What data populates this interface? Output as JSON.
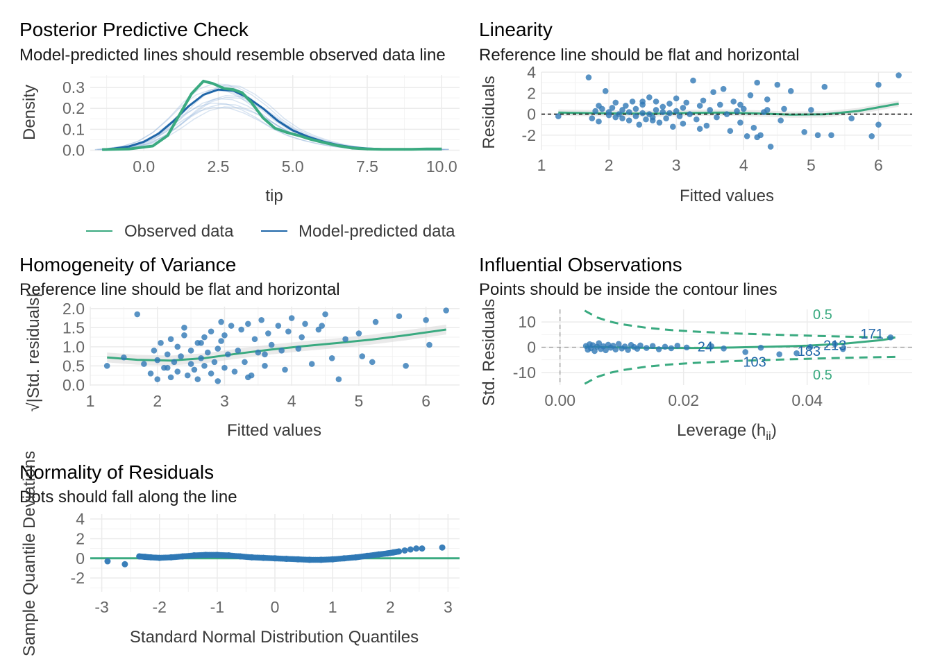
{
  "colors": {
    "observed": "#3aaa80",
    "predicted": "#1f66a8",
    "points": "#2f78b5",
    "grid": "#ebebeb",
    "band": "#d9d9d9",
    "text_muted": "#666666"
  },
  "chart_data": [
    {
      "type": "line",
      "title": "Posterior Predictive Check",
      "subtitle": "Model-predicted lines should resemble observed data line",
      "xlabel": "tip",
      "ylabel": "Density",
      "xlim": [
        -1.8,
        10.6
      ],
      "ylim": [
        -0.005,
        0.36
      ],
      "xticks": [
        0.0,
        2.5,
        5.0,
        7.5,
        10.0
      ],
      "xtick_labels": [
        "0.0",
        "2.5",
        "5.0",
        "7.5",
        "10.0"
      ],
      "yticks": [
        0.0,
        0.1,
        0.2,
        0.3
      ],
      "ytick_labels": [
        "0.0",
        "0.1",
        "0.2",
        "0.3"
      ],
      "grid": true,
      "legend_position": "bottom",
      "series": [
        {
          "name": "Observed data",
          "x": [
            -1.4,
            -0.5,
            0.3,
            0.8,
            1.2,
            1.6,
            2.0,
            2.3,
            2.7,
            3.0,
            3.3,
            3.6,
            4.0,
            4.4,
            4.8,
            5.2,
            5.6,
            6.0,
            6.5,
            7.0,
            7.5,
            8.0,
            8.5,
            9.0,
            9.5,
            10.0
          ],
          "y": [
            0.003,
            0.006,
            0.02,
            0.07,
            0.17,
            0.27,
            0.33,
            0.32,
            0.295,
            0.29,
            0.275,
            0.23,
            0.155,
            0.105,
            0.085,
            0.07,
            0.052,
            0.038,
            0.022,
            0.01,
            0.006,
            0.004,
            0.004,
            0.004,
            0.006,
            0.006
          ]
        },
        {
          "name": "Model-predicted data",
          "x": [
            -1.4,
            -1.0,
            -0.5,
            0.0,
            0.5,
            1.0,
            1.5,
            2.0,
            2.5,
            3.0,
            3.5,
            4.0,
            4.5,
            5.0,
            5.5,
            6.0,
            6.5,
            7.0,
            7.5,
            8.0,
            8.5,
            9.0,
            9.5,
            10.0
          ],
          "y": [
            0.003,
            0.008,
            0.018,
            0.04,
            0.08,
            0.14,
            0.21,
            0.265,
            0.29,
            0.285,
            0.25,
            0.2,
            0.14,
            0.095,
            0.065,
            0.042,
            0.025,
            0.014,
            0.008,
            0.005,
            0.004,
            0.004,
            0.004,
            0.004
          ]
        }
      ]
    },
    {
      "type": "scatter",
      "title": "Linearity",
      "subtitle": "Reference line should be flat and horizontal",
      "xlabel": "Fitted values",
      "ylabel": "Residuals",
      "xlim": [
        1.0,
        6.5
      ],
      "ylim": [
        -3.4,
        4.0
      ],
      "xticks": [
        1,
        2,
        3,
        4,
        5,
        6
      ],
      "xtick_labels": [
        "1",
        "2",
        "3",
        "4",
        "5",
        "6"
      ],
      "yticks": [
        -2,
        0,
        2,
        4
      ],
      "ytick_labels": [
        "-2",
        "0",
        "2",
        "4"
      ],
      "grid": true,
      "reference_line": 0,
      "smooth": {
        "x": [
          1.25,
          1.7,
          2.2,
          2.7,
          3.2,
          3.7,
          4.2,
          4.7,
          5.2,
          5.7,
          6.3
        ],
        "y": [
          0.15,
          0.1,
          0.06,
          0.05,
          0.12,
          0.15,
          0.07,
          -0.05,
          -0.02,
          0.3,
          1.0
        ]
      },
      "points": {
        "x": [
          1.25,
          1.7,
          1.75,
          1.8,
          1.85,
          1.9,
          1.95,
          2.0,
          2.0,
          2.05,
          2.1,
          2.1,
          2.15,
          2.2,
          2.2,
          2.25,
          2.3,
          2.3,
          2.35,
          2.4,
          2.4,
          2.45,
          2.5,
          2.5,
          2.55,
          2.6,
          2.6,
          2.65,
          2.7,
          2.7,
          2.75,
          2.8,
          2.8,
          2.85,
          2.9,
          2.9,
          2.95,
          3.0,
          3.0,
          3.05,
          3.1,
          3.1,
          3.15,
          3.2,
          3.25,
          3.3,
          3.35,
          3.4,
          3.45,
          3.5,
          3.55,
          3.6,
          3.65,
          3.7,
          3.75,
          3.8,
          3.85,
          3.9,
          3.95,
          4.0,
          4.05,
          4.1,
          4.15,
          4.2,
          4.25,
          4.3,
          4.35,
          4.4,
          4.5,
          4.55,
          4.6,
          4.7,
          4.9,
          5.0,
          5.1,
          5.2,
          5.3,
          5.6,
          5.9,
          6.0,
          6.0,
          6.3,
          1.85,
          2.5,
          2.65,
          3.35,
          3.95,
          4.35,
          4.2
        ],
        "y": [
          -0.2,
          3.5,
          -0.4,
          0.3,
          -0.7,
          0.5,
          2.2,
          -0.1,
          0.2,
          0.6,
          -0.3,
          1.1,
          0.0,
          -0.4,
          0.4,
          0.8,
          -0.6,
          0.2,
          1.2,
          -0.2,
          0.5,
          -1.0,
          0.1,
          0.9,
          -0.5,
          1.6,
          0.0,
          -0.3,
          0.4,
          1.2,
          -0.8,
          0.2,
          0.7,
          -0.4,
          1.0,
          0.1,
          -1.2,
          0.3,
          1.5,
          -0.2,
          0.6,
          -0.9,
          1.1,
          0.0,
          3.2,
          -0.5,
          0.8,
          1.3,
          -1.1,
          0.4,
          2.1,
          -0.3,
          0.9,
          2.4,
          0.0,
          -1.6,
          1.2,
          0.3,
          -0.8,
          0.5,
          -2.1,
          1.8,
          -1.3,
          3.0,
          -2.0,
          0.2,
          1.4,
          -3.1,
          2.8,
          -0.6,
          0.5,
          2.2,
          -1.7,
          0.4,
          -2.0,
          2.6,
          -2.0,
          -0.4,
          -2.1,
          2.8,
          -1.0,
          3.7,
          0.8,
          1.2,
          -0.6,
          -1.4,
          0.9,
          0.4,
          -2.2
        ]
      }
    },
    {
      "type": "scatter",
      "title": "Homogeneity of Variance",
      "subtitle": "Reference line should be flat and horizontal",
      "xlabel": "Fitted values",
      "ylabel": "√|Std. residuals|",
      "xlim": [
        1.0,
        6.5
      ],
      "ylim": [
        -0.02,
        2.05
      ],
      "xticks": [
        1,
        2,
        3,
        4,
        5,
        6
      ],
      "xtick_labels": [
        "1",
        "2",
        "3",
        "4",
        "5",
        "6"
      ],
      "yticks": [
        0.0,
        0.5,
        1.0,
        1.5,
        2.0
      ],
      "ytick_labels": [
        "0.0",
        "0.5",
        "1.0",
        "1.5",
        "2.0"
      ],
      "grid": true,
      "smooth": {
        "x": [
          1.25,
          1.7,
          2.2,
          2.7,
          3.2,
          3.7,
          4.2,
          4.7,
          5.2,
          5.7,
          6.3
        ],
        "y": [
          0.72,
          0.66,
          0.64,
          0.7,
          0.82,
          0.93,
          1.02,
          1.1,
          1.19,
          1.3,
          1.45
        ]
      },
      "points": {
        "x": [
          1.25,
          1.5,
          1.7,
          1.8,
          1.9,
          1.95,
          2.0,
          2.0,
          2.05,
          2.1,
          2.15,
          2.2,
          2.2,
          2.25,
          2.3,
          2.3,
          2.35,
          2.4,
          2.45,
          2.5,
          2.5,
          2.55,
          2.6,
          2.6,
          2.65,
          2.7,
          2.7,
          2.75,
          2.8,
          2.8,
          2.85,
          2.9,
          2.9,
          2.95,
          3.0,
          3.0,
          3.05,
          3.1,
          3.15,
          3.2,
          3.25,
          3.3,
          3.35,
          3.4,
          3.45,
          3.5,
          3.55,
          3.6,
          3.65,
          3.7,
          3.8,
          3.9,
          3.95,
          4.0,
          4.1,
          4.15,
          4.2,
          4.3,
          4.4,
          4.5,
          4.6,
          4.7,
          4.8,
          5.0,
          5.05,
          5.2,
          5.25,
          5.6,
          5.7,
          6.0,
          6.05,
          6.3,
          2.15,
          2.65,
          3.35,
          3.85,
          4.45,
          2.4,
          2.95,
          3.6
        ],
        "y": [
          0.5,
          0.72,
          1.85,
          0.55,
          0.3,
          0.9,
          0.15,
          0.65,
          1.1,
          0.45,
          0.8,
          0.2,
          1.2,
          0.6,
          0.35,
          1.0,
          0.75,
          1.3,
          0.25,
          0.55,
          0.9,
          0.4,
          1.1,
          0.15,
          0.7,
          0.5,
          1.25,
          0.85,
          0.3,
          1.4,
          0.6,
          0.95,
          0.1,
          1.15,
          0.45,
          1.3,
          0.8,
          1.55,
          0.35,
          0.9,
          1.45,
          0.6,
          1.6,
          0.25,
          1.2,
          0.85,
          1.7,
          0.5,
          1.35,
          1.05,
          1.55,
          0.4,
          1.4,
          1.75,
          0.95,
          1.25,
          1.6,
          0.55,
          1.45,
          1.85,
          0.7,
          0.15,
          1.2,
          1.35,
          0.75,
          0.6,
          1.65,
          1.8,
          0.5,
          1.7,
          1.05,
          1.95,
          0.45,
          1.1,
          0.2,
          0.9,
          1.55,
          1.5,
          1.65,
          0.8
        ]
      }
    },
    {
      "type": "scatter",
      "title": "Influential Observations",
      "subtitle": "Points should be inside the contour lines",
      "xlabel": "Leverage (h",
      "xlabel_sub": "ii",
      "xlabel_end": ")",
      "ylabel": "Std. Residuals",
      "xlim": [
        -0.003,
        0.057
      ],
      "ylim": [
        -15,
        15
      ],
      "xticks": [
        0.0,
        0.02,
        0.04
      ],
      "xtick_labels": [
        "0.00",
        "0.02",
        "0.04"
      ],
      "yticks": [
        -10,
        0,
        10
      ],
      "ytick_labels": [
        "-10",
        "0",
        "10"
      ],
      "grid": true,
      "contour_label": "0.5",
      "contour": {
        "x": [
          0.004,
          0.006,
          0.008,
          0.01,
          0.014,
          0.018,
          0.022,
          0.028,
          0.034,
          0.04,
          0.046,
          0.052,
          0.055
        ],
        "y": [
          14.5,
          11.8,
          10.2,
          9.1,
          7.7,
          6.8,
          6.2,
          5.5,
          5.0,
          4.6,
          4.2,
          3.9,
          3.8
        ]
      },
      "smooth": {
        "x": [
          0.004,
          0.01,
          0.016,
          0.022,
          0.028,
          0.034,
          0.04,
          0.046,
          0.052,
          0.054
        ],
        "y": [
          0.2,
          -0.1,
          -0.3,
          -0.3,
          -0.1,
          0.2,
          0.6,
          1.4,
          2.8,
          3.6
        ]
      },
      "points": {
        "x": [
          0.0042,
          0.0045,
          0.0048,
          0.005,
          0.0053,
          0.0056,
          0.006,
          0.0063,
          0.0066,
          0.007,
          0.0074,
          0.0078,
          0.0082,
          0.0086,
          0.009,
          0.0095,
          0.01,
          0.0105,
          0.011,
          0.0115,
          0.012,
          0.0125,
          0.013,
          0.014,
          0.015,
          0.016,
          0.017,
          0.018,
          0.019,
          0.0205,
          0.0245,
          0.0265,
          0.03,
          0.0325,
          0.0355,
          0.0383,
          0.0405,
          0.0445,
          0.0458,
          0.0535
        ],
        "y": [
          0.5,
          -1.0,
          1.2,
          -0.4,
          0.8,
          -1.5,
          0.2,
          1.6,
          -0.7,
          0.4,
          -1.2,
          1.0,
          -0.2,
          0.6,
          -0.9,
          1.3,
          -0.5,
          0.3,
          -1.1,
          0.9,
          0.1,
          -0.6,
          0.7,
          -0.3,
          0.5,
          -0.8,
          0.2,
          -0.4,
          0.6,
          -0.1,
          0.4,
          -0.5,
          -1.9,
          -0.2,
          -2.8,
          -2.4,
          0.1,
          1.2,
          -0.7,
          3.9
        ]
      },
      "labels": [
        {
          "text": "24",
          "x": 0.0235,
          "y": 0.3
        },
        {
          "text": "183",
          "x": 0.0403,
          "y": -1.5
        },
        {
          "text": "213",
          "x": 0.0445,
          "y": 0.8
        },
        {
          "text": "103",
          "x": 0.0315,
          "y": -5.8
        },
        {
          "text": "171",
          "x": 0.0505,
          "y": 5.4
        }
      ]
    },
    {
      "type": "scatter",
      "title": "Normality of Residuals",
      "subtitle": "Dots should fall along the line",
      "xlabel": "Standard Normal Distribution Quantiles",
      "ylabel": "Sample Quantile Deviations",
      "xlim": [
        -3.2,
        3.2
      ],
      "ylim": [
        -3.4,
        4.5
      ],
      "xticks": [
        -3,
        -2,
        -1,
        0,
        1,
        2,
        3
      ],
      "xtick_labels": [
        "-3",
        "-2",
        "-1",
        "0",
        "1",
        "2",
        "3"
      ],
      "yticks": [
        -2,
        0,
        2,
        4
      ],
      "ytick_labels": [
        "-2",
        "0",
        "2",
        "4"
      ],
      "grid": true,
      "reference_line": 0,
      "points": {
        "x": [
          -2.9,
          -2.6,
          -2.35,
          -2.25,
          -2.15,
          -2.0,
          -1.8,
          -1.6,
          -1.4,
          -1.2,
          -1.0,
          -0.8,
          -0.6,
          -0.4,
          -0.2,
          0.0,
          0.2,
          0.4,
          0.6,
          0.8,
          1.0,
          1.2,
          1.4,
          1.6,
          1.8,
          1.95,
          2.05,
          2.15,
          2.25,
          2.35,
          2.45,
          2.55,
          2.9
        ],
        "y": [
          -0.3,
          -0.6,
          0.2,
          0.15,
          0.1,
          0.05,
          0.1,
          0.2,
          0.3,
          0.35,
          0.35,
          0.3,
          0.2,
          0.1,
          0.05,
          0.0,
          -0.05,
          -0.1,
          -0.15,
          -0.15,
          -0.1,
          0.0,
          0.1,
          0.25,
          0.4,
          0.5,
          0.6,
          0.7,
          0.8,
          0.9,
          1.0,
          1.0,
          1.1
        ]
      }
    }
  ],
  "legend": {
    "items": [
      {
        "name": "Observed data"
      },
      {
        "name": "Model-predicted data"
      }
    ]
  }
}
